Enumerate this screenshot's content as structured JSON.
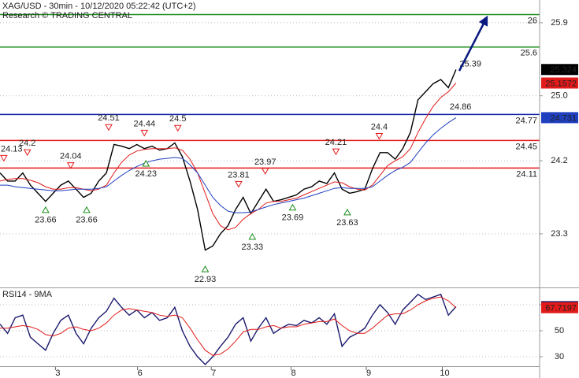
{
  "chart_data": [
    {
      "type": "line",
      "title": "XAG/USD - 30min - 10/12/2020 05:22:42 (UTC+2)",
      "subtitle": "Research © TRADING CENTRAL",
      "xlim": [
        0,
        71
      ],
      "ylim": [
        22.64,
        26.18
      ],
      "yticks": [
        25.9,
        {
          "value": 25,
          "label": "25.0"
        },
        24.2,
        23.3
      ],
      "grid": true,
      "series": [
        {
          "color": "#000000",
          "last_value_tag": true,
          "values": [
            24.05,
            23.95,
            23.95,
            24.05,
            23.9,
            23.8,
            23.7,
            23.8,
            23.9,
            23.95,
            23.85,
            23.75,
            23.8,
            23.95,
            24.05,
            24.4,
            24.38,
            24.35,
            24.4,
            24.35,
            24.38,
            24.33,
            24.35,
            24.42,
            24.25,
            23.95,
            23.6,
            23.1,
            23.15,
            23.3,
            23.4,
            23.6,
            23.75,
            23.55,
            23.7,
            23.85,
            23.7,
            23.72,
            23.75,
            23.78,
            23.85,
            23.88,
            23.95,
            23.92,
            24.05,
            23.85,
            23.8,
            23.82,
            23.85,
            24.1,
            24.3,
            24.3,
            24.22,
            24.35,
            24.55,
            24.95,
            25.05,
            25.15,
            25.2,
            25.1,
            25.324
          ]
        },
        {
          "color": "#e31a1a",
          "last_value_tag": true,
          "values": [
            23.95,
            23.97,
            23.98,
            23.98,
            23.96,
            23.93,
            23.88,
            23.85,
            23.85,
            23.87,
            23.87,
            23.85,
            23.83,
            23.85,
            23.9,
            24.05,
            24.18,
            24.27,
            24.32,
            24.34,
            24.35,
            24.35,
            24.35,
            24.36,
            24.33,
            24.22,
            24.05,
            23.8,
            23.55,
            23.4,
            23.35,
            23.38,
            23.48,
            23.55,
            23.6,
            23.68,
            23.7,
            23.7,
            23.72,
            23.74,
            23.78,
            23.82,
            23.86,
            23.9,
            23.94,
            23.93,
            23.88,
            23.85,
            23.84,
            23.9,
            24.02,
            24.14,
            24.2,
            24.25,
            24.35,
            24.55,
            24.72,
            24.87,
            24.98,
            25.05,
            25.1572
          ]
        },
        {
          "color": "#1f3fbf",
          "last_value_tag": true,
          "values": [
            23.9,
            23.9,
            23.88,
            23.87,
            23.86,
            23.85,
            23.84,
            23.83,
            23.83,
            23.84,
            23.85,
            23.85,
            23.85,
            23.86,
            23.88,
            23.95,
            24.02,
            24.08,
            24.13,
            24.17,
            24.2,
            24.22,
            24.23,
            24.24,
            24.23,
            24.15,
            24.05,
            23.9,
            23.75,
            23.65,
            23.58,
            23.56,
            23.56,
            23.57,
            23.6,
            23.63,
            23.66,
            23.68,
            23.7,
            23.72,
            23.74,
            23.77,
            23.8,
            23.83,
            23.86,
            23.87,
            23.86,
            23.86,
            23.86,
            23.88,
            23.95,
            24.02,
            24.08,
            24.12,
            24.18,
            24.3,
            24.42,
            24.52,
            24.6,
            24.67,
            24.731
          ]
        }
      ],
      "levels": [
        {
          "value": 26,
          "color": "#1a8c1a"
        },
        {
          "value": 25.6,
          "color": "#1a8c1a"
        },
        {
          "value": 24.77,
          "color": "#0a1aa0"
        },
        {
          "value": 24.45,
          "color": "#e31a1a"
        },
        {
          "value": 24.11,
          "color": "#e31a1a"
        }
      ],
      "annotations": [
        {
          "kind": "high",
          "x": 0.5,
          "value": 24.13
        },
        {
          "kind": "high",
          "x": 3.6,
          "value": 24.2
        },
        {
          "kind": "high",
          "x": 9.3,
          "value": 24.04
        },
        {
          "kind": "high",
          "x": 14.3,
          "value": 24.51
        },
        {
          "kind": "high",
          "x": 19.0,
          "value": 24.44
        },
        {
          "kind": "high",
          "x": 23.4,
          "value": 24.5
        },
        {
          "kind": "high",
          "x": 31.4,
          "value": 23.81
        },
        {
          "kind": "high",
          "x": 34.9,
          "value": 23.97
        },
        {
          "kind": "high",
          "x": 44.2,
          "value": 24.21
        },
        {
          "kind": "high",
          "x": 49.9,
          "value": 24.4
        },
        {
          "kind": "low",
          "x": 6.0,
          "value": 23.66
        },
        {
          "kind": "low",
          "x": 11.4,
          "value": 23.66
        },
        {
          "kind": "low",
          "x": 19.2,
          "value": 24.23
        },
        {
          "kind": "low",
          "x": 27.0,
          "value": 22.93
        },
        {
          "kind": "low",
          "x": 33.2,
          "value": 23.33
        },
        {
          "kind": "low",
          "x": 38.5,
          "value": 23.69
        },
        {
          "kind": "low",
          "x": 45.7,
          "value": 23.63
        },
        {
          "kind": "note",
          "x": 60.6,
          "value": 24.86,
          "color": "#1a1a1a"
        },
        {
          "kind": "note",
          "x": 61.9,
          "value": 25.39,
          "color": "#1a1a1a"
        }
      ]
    },
    {
      "type": "line",
      "title": "RSI14 - 9MA",
      "xlim": [
        0,
        71
      ],
      "ylim": [
        22.7,
        81.5
      ],
      "yticks": [
        30,
        50,
        70
      ],
      "grid": true,
      "xticks": [
        {
          "value": 7.3,
          "label": "3"
        },
        {
          "value": 18.1,
          "label": "6"
        },
        {
          "value": 27.8,
          "label": "7"
        },
        {
          "value": 38.3,
          "label": "8"
        },
        {
          "value": 48.2,
          "label": "9"
        },
        {
          "value": 58.2,
          "label": "10"
        }
      ],
      "series": [
        {
          "color": "#1a1a6e",
          "last_value_tag": true,
          "values": [
            55,
            48,
            60,
            62,
            45,
            40,
            35,
            48,
            58,
            62,
            48,
            40,
            52,
            60,
            65,
            75,
            68,
            62,
            66,
            60,
            64,
            58,
            60,
            68,
            50,
            38,
            30,
            24,
            30,
            38,
            45,
            55,
            60,
            42,
            52,
            60,
            48,
            52,
            55,
            54,
            58,
            56,
            60,
            55,
            63,
            38,
            45,
            48,
            52,
            62,
            70,
            64,
            55,
            66,
            72,
            78,
            74,
            76,
            78,
            62,
            68.5508
          ]
        },
        {
          "color": "#e31a1a",
          "last_value_tag": true,
          "values": [
            52,
            52,
            53,
            54,
            53,
            51,
            47,
            46,
            48,
            52,
            53,
            51,
            50,
            52,
            56,
            62,
            66,
            67,
            66,
            65,
            64,
            62,
            61,
            62,
            60,
            52,
            43,
            35,
            31,
            32,
            36,
            42,
            49,
            51,
            51,
            53,
            54,
            52,
            53,
            53,
            55,
            56,
            57,
            57,
            59,
            54,
            50,
            48,
            48,
            52,
            57,
            62,
            63,
            63,
            66,
            70,
            73,
            75,
            76,
            73,
            67.7197
          ]
        }
      ]
    }
  ]
}
